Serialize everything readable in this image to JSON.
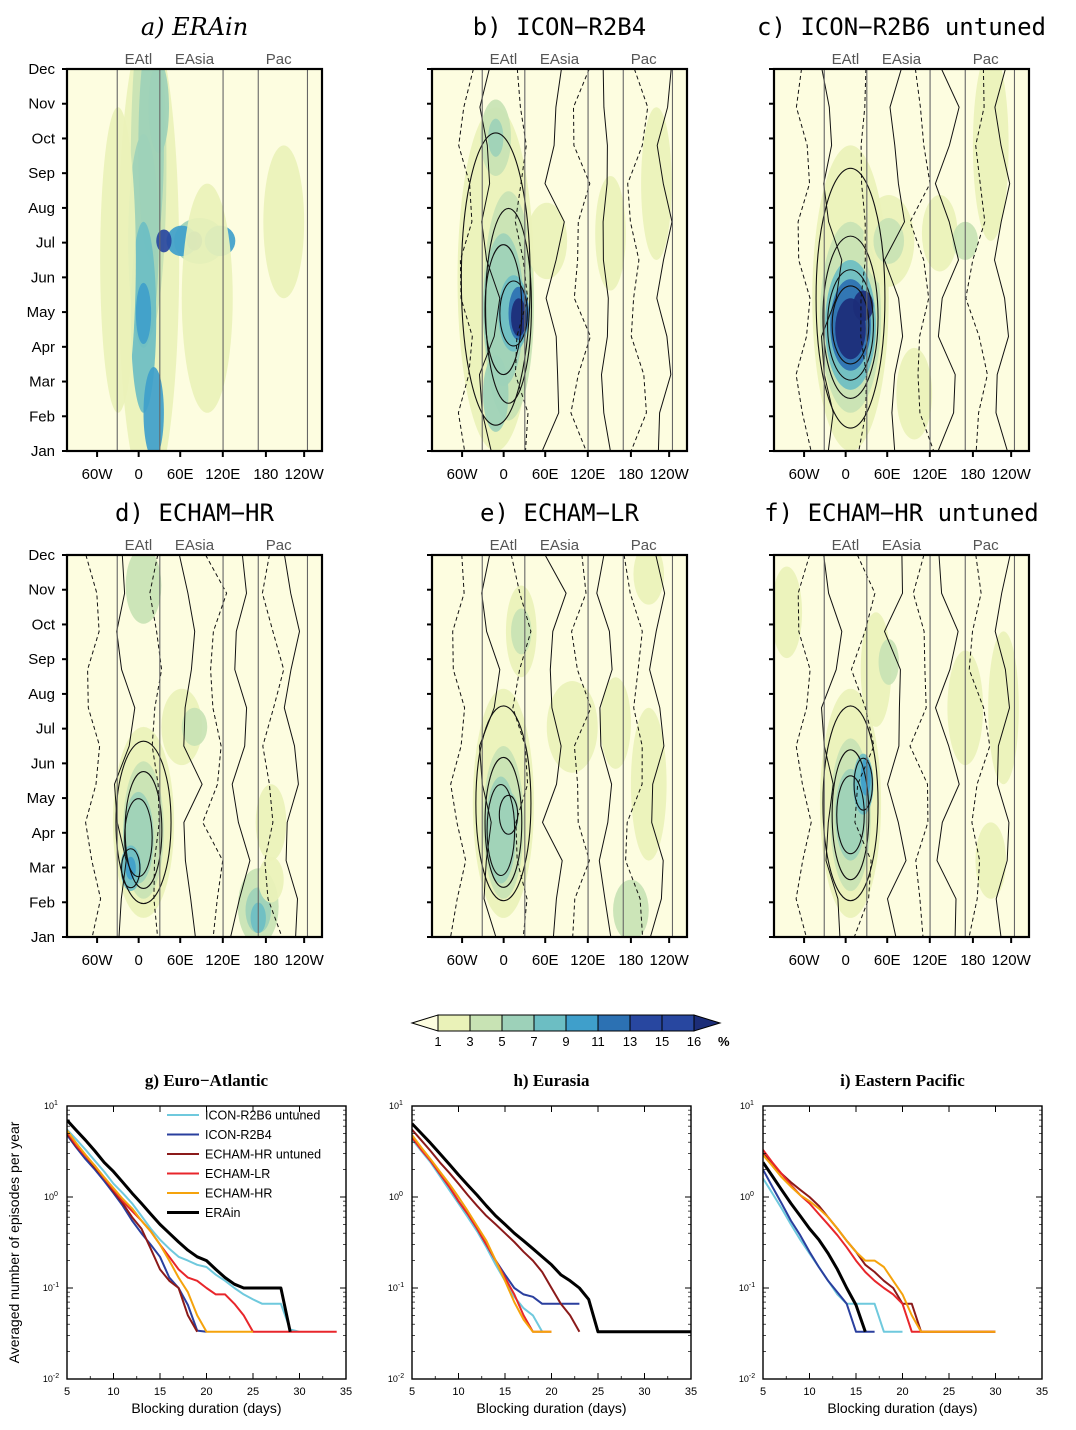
{
  "month_labels": [
    "Dec",
    "Nov",
    "Oct",
    "Sep",
    "Aug",
    "Jul",
    "Jun",
    "May",
    "Apr",
    "Mar",
    "Feb",
    "Jan"
  ],
  "lon_labels": [
    "60W",
    "0",
    "60E",
    "120E",
    "180",
    "120W"
  ],
  "region_labels": [
    "EAtl",
    "EAsia",
    "Pac"
  ],
  "panels": [
    {
      "title": "a) ERAin",
      "italic": true
    },
    {
      "title": "b) ICON−R2B4",
      "italic": false
    },
    {
      "title": "c) ICON−R2B6 untuned",
      "italic": false
    },
    {
      "title": "d) ECHAM−HR",
      "italic": false
    },
    {
      "title": "e) ECHAM−LR",
      "italic": false
    },
    {
      "title": "f) ECHAM−HR untuned",
      "italic": false
    }
  ],
  "colorbar": {
    "labels": [
      "1",
      "3",
      "5",
      "7",
      "9",
      "11",
      "13",
      "15",
      "16"
    ],
    "unit": "%",
    "colors": [
      "#fdfde0",
      "#eaf2b8",
      "#c8e3b4",
      "#9dd1b9",
      "#6cbec3",
      "#3f9fcb",
      "#2c71b3",
      "#2847a0",
      "#1c2d78"
    ]
  },
  "colors": {
    "cyan": "#6fc9dd",
    "navy": "#2a3f9e",
    "darkred": "#8b1a1a",
    "red": "#e8262b",
    "orange": "#f5a30c",
    "black": "#000000"
  },
  "chart_data": [
    {
      "type": "line",
      "title": "g) Euro−Atlantic",
      "title_letter": "g)",
      "title_rest": " Euro−Atlantic",
      "xlabel": "Blocking duration (days)",
      "ylabel": "Averaged number of episodes per year",
      "xlim": [
        5,
        35
      ],
      "ylim": [
        0.01,
        10
      ],
      "yscale": "log",
      "xticks": [
        "5",
        "10",
        "15",
        "20",
        "25",
        "30",
        "35"
      ],
      "yticks": [
        {
          "base": "10",
          "exp": "1"
        },
        {
          "base": "10",
          "exp": "0"
        },
        {
          "base": "10",
          "exp": "-1"
        },
        {
          "base": "10",
          "exp": "-2"
        }
      ],
      "legend_position": "top-center",
      "series": [
        {
          "name": "ICON-R2B6 untuned",
          "color": "#6fc9dd",
          "x": [
            5,
            6,
            7,
            8,
            9,
            10,
            11,
            12,
            13,
            14,
            15,
            16,
            17,
            18,
            19,
            20,
            21,
            22,
            23,
            24,
            25,
            26,
            27,
            28,
            29,
            30
          ],
          "y": [
            5.5,
            4.3,
            3.3,
            2.5,
            1.9,
            1.4,
            1.1,
            0.85,
            0.62,
            0.45,
            0.34,
            0.27,
            0.22,
            0.2,
            0.18,
            0.17,
            0.14,
            0.12,
            0.1,
            0.085,
            0.075,
            0.067,
            0.067,
            0.067,
            0.035,
            0.033
          ]
        },
        {
          "name": "ICON-R2B4",
          "color": "#2a3f9e",
          "x": [
            5,
            6,
            7,
            8,
            9,
            10,
            11,
            12,
            13,
            14,
            15,
            16,
            17,
            18,
            19,
            20
          ],
          "y": [
            4.8,
            3.5,
            2.6,
            2.0,
            1.5,
            1.1,
            0.8,
            0.55,
            0.4,
            0.3,
            0.22,
            0.13,
            0.1,
            0.065,
            0.034,
            0.033
          ]
        },
        {
          "name": "ECHAM-HR untuned",
          "color": "#8b1a1a",
          "x": [
            5,
            6,
            7,
            8,
            9,
            10,
            11,
            12,
            13,
            14,
            15,
            16,
            17,
            18,
            19
          ],
          "y": [
            5.0,
            3.6,
            2.8,
            2.1,
            1.6,
            1.15,
            0.85,
            0.6,
            0.45,
            0.27,
            0.16,
            0.12,
            0.1,
            0.05,
            0.033
          ]
        },
        {
          "name": "ECHAM-LR",
          "color": "#e8262b",
          "x": [
            5,
            6,
            7,
            8,
            9,
            10,
            11,
            12,
            13,
            14,
            15,
            16,
            17,
            18,
            19,
            20,
            21,
            22,
            23,
            24,
            25,
            26,
            27,
            28,
            29,
            30,
            31,
            34
          ],
          "y": [
            5.2,
            3.7,
            2.8,
            2.2,
            1.6,
            1.2,
            0.9,
            0.7,
            0.55,
            0.42,
            0.3,
            0.22,
            0.16,
            0.13,
            0.12,
            0.1,
            0.085,
            0.085,
            0.067,
            0.05,
            0.033,
            0.033,
            0.033,
            0.033,
            0.033,
            0.033,
            0.033,
            0.033
          ]
        },
        {
          "name": "ECHAM-HR",
          "color": "#f5a30c",
          "x": [
            5,
            6,
            7,
            8,
            9,
            10,
            11,
            12,
            13,
            14,
            15,
            16,
            17,
            18,
            19,
            20,
            21,
            22,
            23,
            24,
            25
          ],
          "y": [
            5.4,
            3.9,
            2.9,
            2.2,
            1.65,
            1.25,
            0.95,
            0.75,
            0.55,
            0.42,
            0.3,
            0.2,
            0.13,
            0.09,
            0.05,
            0.033,
            0.033,
            0.033,
            0.033,
            0.033,
            0.033
          ]
        },
        {
          "name": "ERAin",
          "color": "#000000",
          "x": [
            5,
            6,
            7,
            8,
            9,
            10,
            11,
            12,
            13,
            14,
            15,
            16,
            17,
            18,
            19,
            20,
            21,
            22,
            23,
            24,
            25,
            26,
            27,
            28,
            29
          ],
          "y": [
            7.0,
            5.4,
            4.2,
            3.2,
            2.4,
            1.9,
            1.45,
            1.1,
            0.85,
            0.65,
            0.5,
            0.4,
            0.32,
            0.26,
            0.22,
            0.2,
            0.16,
            0.13,
            0.11,
            0.1,
            0.1,
            0.1,
            0.1,
            0.1,
            0.033
          ]
        }
      ]
    },
    {
      "type": "line",
      "title": "h) Eurasia",
      "title_letter": "h)",
      "title_rest": " Eurasia",
      "xlabel": "Blocking duration (days)",
      "ylabel": "",
      "xlim": [
        5,
        35
      ],
      "ylim": [
        0.01,
        10
      ],
      "yscale": "log",
      "xticks": [
        "5",
        "10",
        "15",
        "20",
        "25",
        "30",
        "35"
      ],
      "yticks": [
        {
          "base": "10",
          "exp": "1"
        },
        {
          "base": "10",
          "exp": "0"
        },
        {
          "base": "10",
          "exp": "-1"
        },
        {
          "base": "10",
          "exp": "-2"
        }
      ],
      "series": [
        {
          "name": "ICON-R2B6 untuned",
          "color": "#6fc9dd",
          "x": [
            5,
            6,
            7,
            8,
            9,
            10,
            11,
            12,
            13,
            14,
            15,
            16,
            17,
            18,
            19
          ],
          "y": [
            4.3,
            3.2,
            2.4,
            1.7,
            1.2,
            0.85,
            0.6,
            0.42,
            0.28,
            0.18,
            0.12,
            0.08,
            0.06,
            0.05,
            0.033
          ]
        },
        {
          "name": "ICON-R2B4",
          "color": "#2a3f9e",
          "x": [
            5,
            6,
            7,
            8,
            9,
            10,
            11,
            12,
            13,
            14,
            15,
            16,
            17,
            18,
            19,
            20,
            21,
            22,
            23
          ],
          "y": [
            4.6,
            3.4,
            2.5,
            1.8,
            1.3,
            0.9,
            0.65,
            0.45,
            0.3,
            0.2,
            0.14,
            0.1,
            0.085,
            0.08,
            0.067,
            0.067,
            0.067,
            0.067,
            0.067
          ]
        },
        {
          "name": "ECHAM-HR untuned",
          "color": "#8b1a1a",
          "x": [
            5,
            6,
            7,
            8,
            9,
            10,
            11,
            12,
            13,
            14,
            15,
            16,
            17,
            18,
            19,
            20,
            21,
            22,
            23
          ],
          "y": [
            5.5,
            4.2,
            3.2,
            2.4,
            1.85,
            1.4,
            1.05,
            0.8,
            0.62,
            0.5,
            0.4,
            0.32,
            0.25,
            0.2,
            0.15,
            0.1,
            0.067,
            0.05,
            0.033
          ]
        },
        {
          "name": "ECHAM-LR",
          "color": "#e8262b",
          "x": [
            5,
            6,
            7,
            8,
            9,
            10,
            11,
            12,
            13,
            14,
            15,
            16,
            17,
            18,
            19,
            20
          ],
          "y": [
            4.5,
            3.3,
            2.5,
            1.8,
            1.3,
            0.9,
            0.65,
            0.45,
            0.3,
            0.2,
            0.13,
            0.085,
            0.05,
            0.033,
            0.033,
            0.033
          ]
        },
        {
          "name": "ECHAM-HR",
          "color": "#f5a30c",
          "x": [
            5,
            6,
            7,
            8,
            9,
            10,
            11,
            12,
            13,
            14,
            15,
            16,
            17,
            18,
            19,
            20
          ],
          "y": [
            4.8,
            3.5,
            2.6,
            1.9,
            1.4,
            1.0,
            0.7,
            0.48,
            0.33,
            0.2,
            0.12,
            0.07,
            0.045,
            0.033,
            0.033,
            0.033
          ]
        },
        {
          "name": "ERAin",
          "color": "#000000",
          "x": [
            5,
            6,
            7,
            8,
            9,
            10,
            11,
            12,
            13,
            14,
            15,
            16,
            17,
            18,
            19,
            20,
            21,
            22,
            23,
            24,
            25,
            26,
            27,
            28,
            29,
            30,
            31,
            32,
            33,
            34,
            35
          ],
          "y": [
            6.4,
            5.0,
            3.9,
            3.0,
            2.3,
            1.75,
            1.35,
            1.05,
            0.8,
            0.62,
            0.5,
            0.4,
            0.33,
            0.27,
            0.22,
            0.18,
            0.14,
            0.12,
            0.1,
            0.075,
            0.033,
            0.033,
            0.033,
            0.033,
            0.033,
            0.033,
            0.033,
            0.033,
            0.033,
            0.033,
            0.033
          ]
        }
      ]
    },
    {
      "type": "line",
      "title": "i) Eastern Pacific",
      "title_letter": "i)",
      "title_rest": " Eastern Pacific",
      "xlabel": "Blocking duration (days)",
      "ylabel": "",
      "xlim": [
        5,
        35
      ],
      "ylim": [
        0.01,
        10
      ],
      "yscale": "log",
      "xticks": [
        "5",
        "10",
        "15",
        "20",
        "25",
        "30",
        "35"
      ],
      "yticks": [
        {
          "base": "10",
          "exp": "1"
        },
        {
          "base": "10",
          "exp": "0"
        },
        {
          "base": "10",
          "exp": "-1"
        },
        {
          "base": "10",
          "exp": "-2"
        }
      ],
      "series": [
        {
          "name": "ICON-R2B6 untuned",
          "color": "#6fc9dd",
          "x": [
            5,
            6,
            7,
            8,
            9,
            10,
            11,
            12,
            13,
            14,
            15,
            16,
            17,
            18,
            19,
            20
          ],
          "y": [
            1.6,
            1.1,
            0.75,
            0.5,
            0.34,
            0.24,
            0.17,
            0.12,
            0.085,
            0.067,
            0.067,
            0.067,
            0.067,
            0.033,
            0.033,
            0.033
          ]
        },
        {
          "name": "ICON-R2B4",
          "color": "#2a3f9e",
          "x": [
            5,
            6,
            7,
            8,
            9,
            10,
            11,
            12,
            13,
            14,
            15,
            16,
            17
          ],
          "y": [
            2.0,
            1.3,
            0.85,
            0.55,
            0.38,
            0.25,
            0.17,
            0.12,
            0.09,
            0.067,
            0.033,
            0.033,
            0.033
          ]
        },
        {
          "name": "ECHAM-HR untuned",
          "color": "#8b1a1a",
          "x": [
            5,
            6,
            7,
            8,
            9,
            10,
            11,
            12,
            13,
            14,
            15,
            16,
            17,
            18,
            19,
            20,
            21,
            22,
            23,
            24,
            25,
            26,
            27,
            28,
            29,
            30
          ],
          "y": [
            3.0,
            2.3,
            1.8,
            1.45,
            1.2,
            1.0,
            0.8,
            0.6,
            0.45,
            0.33,
            0.25,
            0.18,
            0.15,
            0.12,
            0.1,
            0.067,
            0.067,
            0.033,
            0.033,
            0.033,
            0.033,
            0.033,
            0.033,
            0.033,
            0.033,
            0.033
          ]
        },
        {
          "name": "ECHAM-LR",
          "color": "#e8262b",
          "x": [
            5,
            6,
            7,
            8,
            9,
            10,
            11,
            12,
            13,
            14,
            15,
            16,
            17,
            18,
            19,
            20,
            21,
            22,
            23,
            24,
            25,
            26,
            27,
            28,
            29,
            30
          ],
          "y": [
            3.3,
            2.4,
            1.8,
            1.35,
            1.05,
            0.85,
            0.65,
            0.5,
            0.38,
            0.28,
            0.2,
            0.15,
            0.12,
            0.1,
            0.085,
            0.067,
            0.033,
            0.033,
            0.033,
            0.033,
            0.033,
            0.033,
            0.033,
            0.033,
            0.033,
            0.033
          ]
        },
        {
          "name": "ECHAM-HR",
          "color": "#f5a30c",
          "x": [
            5,
            6,
            7,
            8,
            9,
            10,
            11,
            12,
            13,
            14,
            15,
            16,
            17,
            18,
            19,
            20,
            21,
            22,
            23,
            24,
            25,
            26,
            27,
            28,
            29,
            30
          ],
          "y": [
            2.9,
            2.2,
            1.65,
            1.3,
            1.05,
            0.9,
            0.75,
            0.6,
            0.45,
            0.33,
            0.25,
            0.2,
            0.2,
            0.17,
            0.12,
            0.085,
            0.05,
            0.033,
            0.033,
            0.033,
            0.033,
            0.033,
            0.033,
            0.033,
            0.033,
            0.033
          ]
        },
        {
          "name": "ERAin",
          "color": "#000000",
          "x": [
            5,
            6,
            7,
            8,
            9,
            10,
            11,
            12,
            13,
            14,
            15,
            16
          ],
          "y": [
            2.4,
            1.7,
            1.2,
            0.85,
            0.62,
            0.45,
            0.34,
            0.24,
            0.16,
            0.1,
            0.065,
            0.033
          ]
        }
      ]
    }
  ]
}
